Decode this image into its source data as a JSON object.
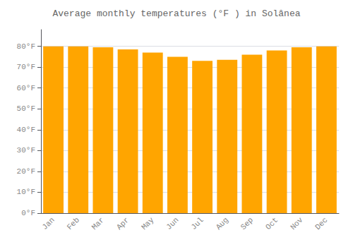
{
  "chart_data": {
    "type": "bar",
    "title": "Average monthly temperatures (°F ) in Solânea",
    "categories": [
      "Jan",
      "Feb",
      "Mar",
      "Apr",
      "May",
      "Jun",
      "Jul",
      "Aug",
      "Sep",
      "Oct",
      "Nov",
      "Dec"
    ],
    "values": [
      80.0,
      80.0,
      79.5,
      78.5,
      77.0,
      75.0,
      73.0,
      73.5,
      76.0,
      78.0,
      79.5,
      80.0
    ],
    "color": "#FFA500",
    "ylim": [
      0,
      88
    ],
    "yticks": [
      {
        "value": 0,
        "label": "0°F"
      },
      {
        "value": 10,
        "label": "10°F"
      },
      {
        "value": 20,
        "label": "20°F"
      },
      {
        "value": 30,
        "label": "30°F"
      },
      {
        "value": 40,
        "label": "40°F"
      },
      {
        "value": 50,
        "label": "50°F"
      },
      {
        "value": 60,
        "label": "60°F"
      },
      {
        "value": 70,
        "label": "70°F"
      },
      {
        "value": 80,
        "label": "80°F"
      }
    ],
    "grid": true
  }
}
